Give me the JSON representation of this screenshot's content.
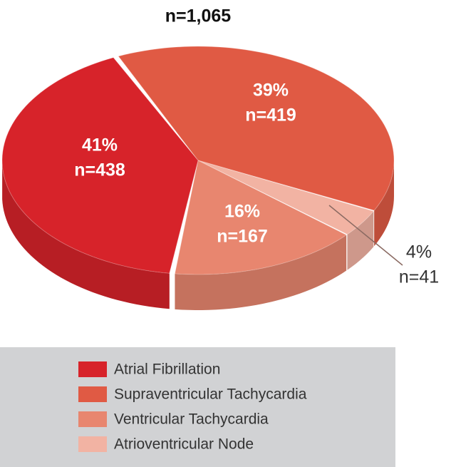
{
  "chart_data": {
    "type": "pie",
    "title": "n=1,065",
    "categories": [
      "Atrial Fibrillation",
      "Supraventricular Tachycardia",
      "Ventricular Tachycardia",
      "Atrioventricular Node"
    ],
    "values": [
      41,
      39,
      16,
      4
    ],
    "value_labels": [
      "41%",
      "39%",
      "16%",
      "4%"
    ],
    "counts": [
      438,
      419,
      167,
      41
    ],
    "count_labels": [
      "n=438",
      "n=419",
      "n=167",
      "n=41"
    ],
    "colors": [
      "#d7232a",
      "#e05a44",
      "#e8866f",
      "#f2b3a3"
    ]
  }
}
